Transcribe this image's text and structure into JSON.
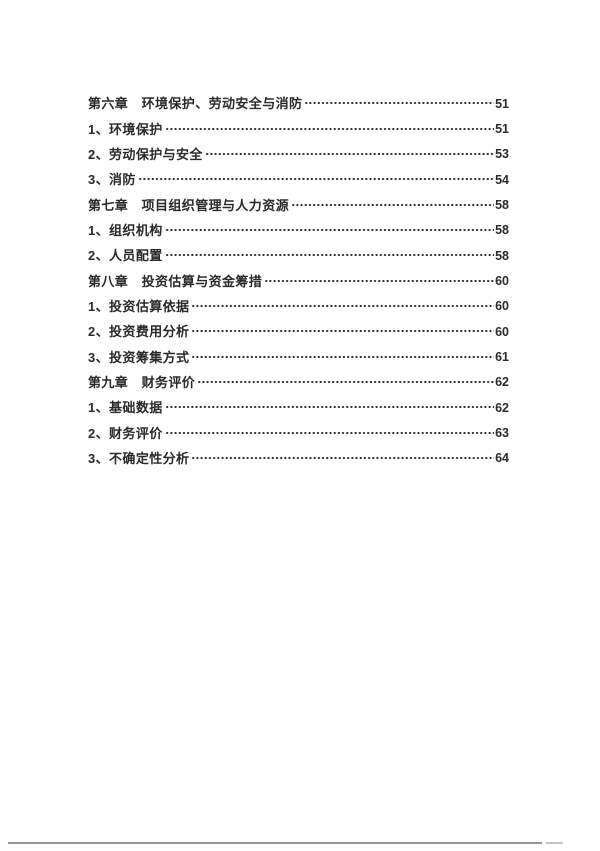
{
  "colors": {
    "text": "#2a2a2a",
    "page_border_line": "#98948f"
  },
  "toc": {
    "entries": [
      {
        "label": "第六章　环境保护、劳动安全与消防",
        "page": "51",
        "level": "chapter"
      },
      {
        "label": "1、环境保护",
        "page": "51",
        "level": "item"
      },
      {
        "label": "2、劳动保护与安全",
        "page": "53",
        "level": "item"
      },
      {
        "label": "3、消防",
        "page": "54",
        "level": "item"
      },
      {
        "label": "第七章　项目组织管理与人力资源",
        "page": "58",
        "level": "chapter"
      },
      {
        "label": "1、组织机构",
        "page": "58",
        "level": "item"
      },
      {
        "label": "2、人员配置",
        "page": "58",
        "level": "item"
      },
      {
        "label": "第八章　投资估算与资金筹措",
        "page": "60",
        "level": "chapter"
      },
      {
        "label": "1、投资估算依据",
        "page": "60",
        "level": "item"
      },
      {
        "label": "2、投资费用分析",
        "page": "60",
        "level": "item"
      },
      {
        "label": "3、投资筹集方式",
        "page": "61",
        "level": "item"
      },
      {
        "label": "第九章　财务评价",
        "page": "62",
        "level": "chapter"
      },
      {
        "label": "1、基础数据",
        "page": "62",
        "level": "item"
      },
      {
        "label": "2、财务评价",
        "page": "63",
        "level": "item"
      },
      {
        "label": "3、不确定性分析",
        "page": "64",
        "level": "item"
      }
    ]
  }
}
